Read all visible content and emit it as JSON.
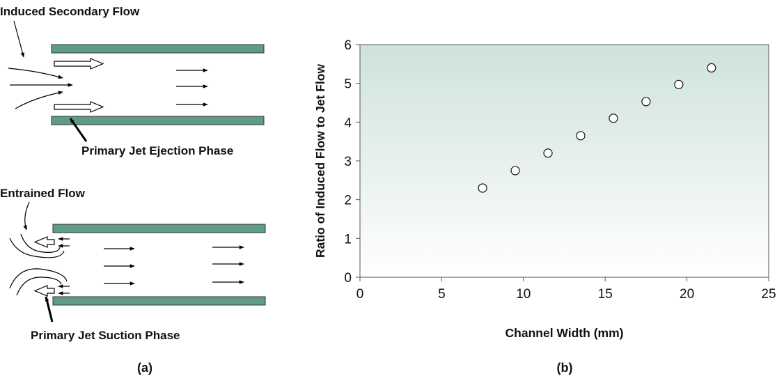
{
  "panel_a": {
    "ejection": {
      "secondary_label": "Induced Secondary Flow",
      "phase_label": "Primary Jet Ejection Phase"
    },
    "suction": {
      "entrained_label": "Entrained Flow",
      "phase_label": "Primary Jet Suction Phase"
    },
    "plate_color": "#5e9c87",
    "caption": "(a)"
  },
  "caption_b": "(b)",
  "chart_data": {
    "type": "scatter",
    "x": [
      7.5,
      9.5,
      11.5,
      13.5,
      15.5,
      17.5,
      19.5,
      21.5
    ],
    "y": [
      2.3,
      2.75,
      3.2,
      3.65,
      4.1,
      4.53,
      4.97,
      5.4
    ],
    "xlabel": "Channel Width (mm)",
    "ylabel": "Ratio of Induced Flow to Jet Flow",
    "xlim": [
      0,
      25
    ],
    "ylim": [
      0,
      6
    ],
    "xticks": [
      "0",
      "5",
      "10",
      "15",
      "20",
      "25"
    ],
    "yticks": [
      "0",
      "1",
      "2",
      "3",
      "4",
      "5",
      "6"
    ],
    "grid": false,
    "background_gradient": [
      "#cfe2db",
      "#ffffff"
    ]
  }
}
